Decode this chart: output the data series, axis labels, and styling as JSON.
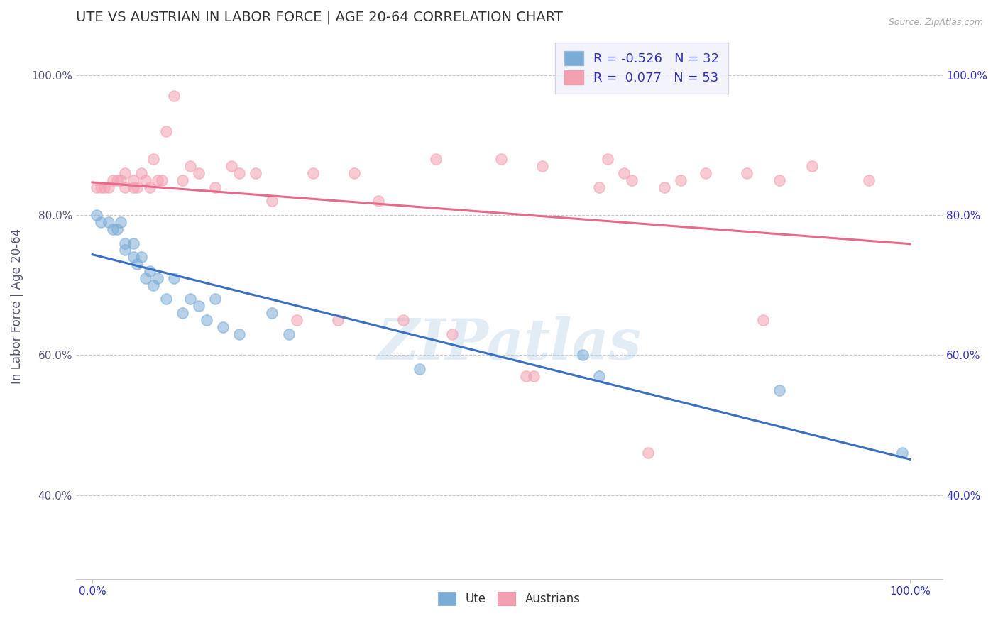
{
  "title": "UTE VS AUSTRIAN IN LABOR FORCE | AGE 20-64 CORRELATION CHART",
  "source": "Source: ZipAtlas.com",
  "ylabel": "In Labor Force | Age 20-64",
  "xlim": [
    -0.02,
    1.04
  ],
  "ylim": [
    0.28,
    1.06
  ],
  "yticks": [
    0.4,
    0.6,
    0.8,
    1.0
  ],
  "ytick_labels": [
    "40.0%",
    "60.0%",
    "80.0%",
    "100.0%"
  ],
  "xtick_left_label": "0.0%",
  "xtick_right_label": "100.0%",
  "ute_color": "#7aacd6",
  "ute_edge_color": "#7aacd6",
  "austrians_color": "#f4a0b0",
  "austrians_edge_color": "#f4a0b0",
  "ute_line_color": "#3a6fc4",
  "austrians_line_color": "#e8698a",
  "watermark": "ZIPatlas",
  "watermark_color": "#b8d0e8",
  "R_ute": -0.526,
  "N_ute": 32,
  "R_austrians": 0.077,
  "N_austrians": 53,
  "ute_x": [
    0.005,
    0.01,
    0.02,
    0.025,
    0.03,
    0.035,
    0.04,
    0.04,
    0.05,
    0.05,
    0.055,
    0.06,
    0.065,
    0.07,
    0.075,
    0.08,
    0.09,
    0.1,
    0.11,
    0.12,
    0.13,
    0.14,
    0.15,
    0.16,
    0.18,
    0.22,
    0.24,
    0.4,
    0.6,
    0.62,
    0.84,
    0.99
  ],
  "ute_y": [
    0.8,
    0.79,
    0.79,
    0.78,
    0.78,
    0.79,
    0.76,
    0.75,
    0.76,
    0.74,
    0.73,
    0.74,
    0.71,
    0.72,
    0.7,
    0.71,
    0.68,
    0.71,
    0.66,
    0.68,
    0.67,
    0.65,
    0.68,
    0.64,
    0.63,
    0.66,
    0.63,
    0.58,
    0.6,
    0.57,
    0.55,
    0.46
  ],
  "austrians_x": [
    0.005,
    0.01,
    0.015,
    0.02,
    0.025,
    0.03,
    0.035,
    0.04,
    0.04,
    0.05,
    0.05,
    0.055,
    0.06,
    0.065,
    0.07,
    0.075,
    0.08,
    0.085,
    0.09,
    0.1,
    0.11,
    0.12,
    0.13,
    0.15,
    0.17,
    0.18,
    0.2,
    0.22,
    0.25,
    0.27,
    0.3,
    0.32,
    0.35,
    0.38,
    0.42,
    0.44,
    0.5,
    0.53,
    0.54,
    0.55,
    0.62,
    0.63,
    0.65,
    0.66,
    0.68,
    0.7,
    0.72,
    0.75,
    0.8,
    0.82,
    0.84,
    0.88,
    0.95
  ],
  "austrians_y": [
    0.84,
    0.84,
    0.84,
    0.84,
    0.85,
    0.85,
    0.85,
    0.84,
    0.86,
    0.84,
    0.85,
    0.84,
    0.86,
    0.85,
    0.84,
    0.88,
    0.85,
    0.85,
    0.92,
    0.97,
    0.85,
    0.87,
    0.86,
    0.84,
    0.87,
    0.86,
    0.86,
    0.82,
    0.65,
    0.86,
    0.65,
    0.86,
    0.82,
    0.65,
    0.88,
    0.63,
    0.88,
    0.57,
    0.57,
    0.87,
    0.84,
    0.88,
    0.86,
    0.85,
    0.46,
    0.84,
    0.85,
    0.86,
    0.86,
    0.65,
    0.85,
    0.87,
    0.85
  ],
  "background_color": "#ffffff",
  "grid_color": "#c8c8c8",
  "title_color": "#333333",
  "ylabel_color": "#555577",
  "tick_color_left": "#555577",
  "tick_color_right": "#3333bb",
  "legend_text_color": "#3333bb",
  "legend_facecolor": "#f0f0fa",
  "legend_edgecolor": "#ccccdd",
  "source_color": "#aaaaaa"
}
